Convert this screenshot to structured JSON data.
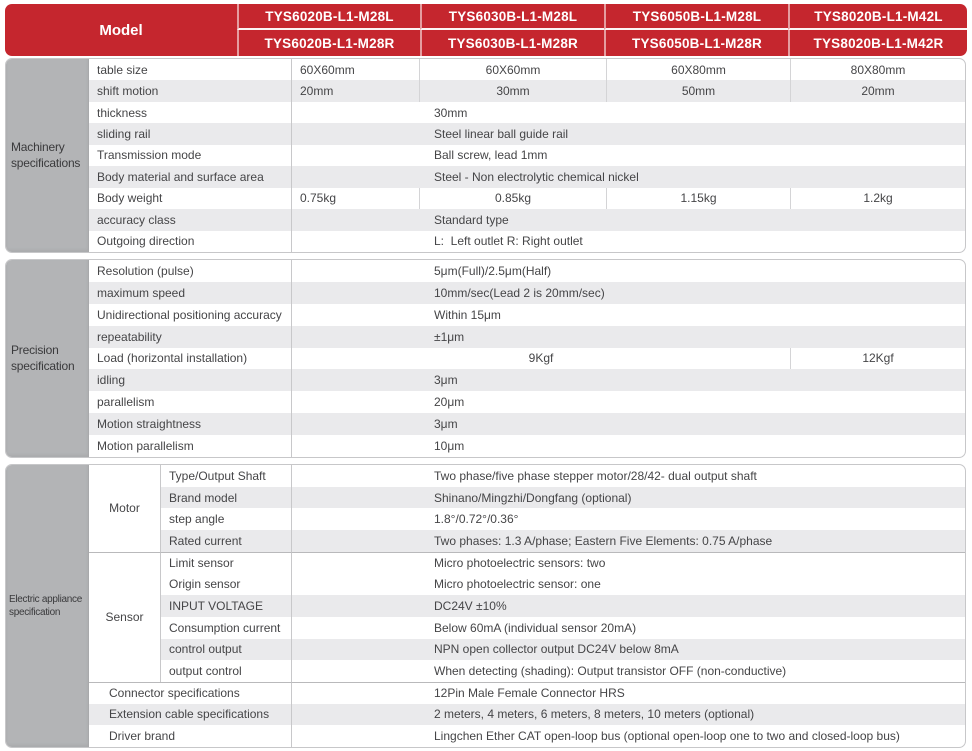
{
  "header": {
    "model_label": "Model",
    "columns": [
      {
        "top": "TYS6020B-L1-M28L",
        "bottom": "TYS6020B-L1-M28R"
      },
      {
        "top": "TYS6030B-L1-M28L",
        "bottom": "TYS6030B-L1-M28R"
      },
      {
        "top": "TYS6050B-L1-M28L",
        "bottom": "TYS6050B-L1-M28R"
      },
      {
        "top": "TYS8020B-L1-M42L",
        "bottom": "TYS8020B-L1-M42R"
      }
    ]
  },
  "colors": {
    "header_red": "#c5262e",
    "label_gray": "#b3b4b6",
    "row_alt_gray": "#eaeaec"
  },
  "sections": [
    {
      "id": "machinery",
      "label": "Machinery specifications",
      "rows": [
        {
          "label": "table size",
          "cells": [
            "60X60mm",
            "60X60mm",
            "60X80mm",
            "80X80mm"
          ],
          "shaded": false
        },
        {
          "label": "shift motion",
          "cells": [
            "20mm",
            "30mm",
            "50mm",
            "20mm"
          ],
          "shaded": true
        },
        {
          "label": "thickness",
          "merged": "30mm",
          "shaded": false
        },
        {
          "label": "sliding rail",
          "merged": "Steel linear ball guide rail",
          "shaded": true
        },
        {
          "label": "Transmission mode",
          "merged": "Ball screw, lead 1mm",
          "shaded": false
        },
        {
          "label": "Body material and surface area",
          "merged": "Steel - Non electrolytic chemical nickel",
          "shaded": true
        },
        {
          "label": "Body weight",
          "cells": [
            "0.75kg",
            "0.85kg",
            "1.15kg",
            "1.2kg"
          ],
          "shaded": false
        },
        {
          "label": "accuracy class",
          "merged": "Standard type",
          "shaded": true
        },
        {
          "label": "Outgoing direction",
          "merged": "L:  Left outlet R: Right outlet",
          "shaded": false
        }
      ]
    },
    {
      "id": "precision",
      "label": "Precision specification",
      "rows": [
        {
          "label": "Resolution (pulse)",
          "merged": "5μm(Full)/2.5μm(Half)",
          "shaded": false
        },
        {
          "label": "maximum speed",
          "merged": "10mm/sec(Lead 2 is 20mm/sec)",
          "shaded": true
        },
        {
          "label": "Unidirectional positioning accuracy",
          "merged": "Within 15μm",
          "shaded": false
        },
        {
          "label": "repeatability",
          "merged": "±1μm",
          "shaded": true
        },
        {
          "label": "Load (horizontal installation)",
          "split": {
            "left": "9Kgf",
            "right": "12Kgf"
          },
          "shaded": false
        },
        {
          "label": "idling",
          "merged": "3μm",
          "shaded": true
        },
        {
          "label": "parallelism",
          "merged": "20μm",
          "shaded": false
        },
        {
          "label": "Motion straightness",
          "merged": "3μm",
          "shaded": true
        },
        {
          "label": "Motion parallelism",
          "merged": "10μm",
          "shaded": false
        }
      ]
    },
    {
      "id": "electric",
      "label": "Electric appliance specification",
      "rows": [
        {
          "group": "Motor",
          "group_span": 4,
          "label": "Type/Output Shaft",
          "merged": "Two phase/five phase stepper motor/28/42- dual output shaft",
          "shaded": false
        },
        {
          "label": "Brand model",
          "merged": "Shinano/Mingzhi/Dongfang (optional)",
          "shaded": true
        },
        {
          "label": "step angle",
          "merged": "1.8°/0.72°/0.36°",
          "shaded": false
        },
        {
          "label": "Rated current",
          "merged": "Two phases: 1.3 A/phase; Eastern Five Elements: 0.75 A/phase",
          "shaded": true
        },
        {
          "group": "Sensor",
          "group_span": 6,
          "label": "Limit sensor",
          "merged": "Micro photoelectric sensors: two",
          "shaded": false
        },
        {
          "label": "Origin sensor",
          "merged": "Micro photoelectric sensor: one",
          "shaded": false
        },
        {
          "label": "INPUT VOLTAGE",
          "merged": "DC24V ±10%",
          "shaded": true
        },
        {
          "label": "Consumption current",
          "merged": "Below 60mA (individual sensor 20mA)",
          "shaded": false
        },
        {
          "label": "control output",
          "merged": "NPN open collector output DC24V below 8mA",
          "shaded": true
        },
        {
          "label": "output control",
          "merged": "When detecting (shading): Output transistor OFF (non-conductive)",
          "shaded": false
        },
        {
          "label": "Connector specifications",
          "wide_label": true,
          "merged": "12Pin Male Female Connector HRS",
          "shaded": false
        },
        {
          "label": "Extension cable specifications",
          "wide_label": true,
          "merged": "2 meters, 4 meters, 6 meters, 8 meters, 10 meters (optional)",
          "shaded": true
        },
        {
          "label": "Driver brand",
          "wide_label": true,
          "merged": "Lingchen Ether CAT open-loop bus (optional open-loop one to two and closed-loop bus)",
          "shaded": false
        }
      ]
    }
  ]
}
